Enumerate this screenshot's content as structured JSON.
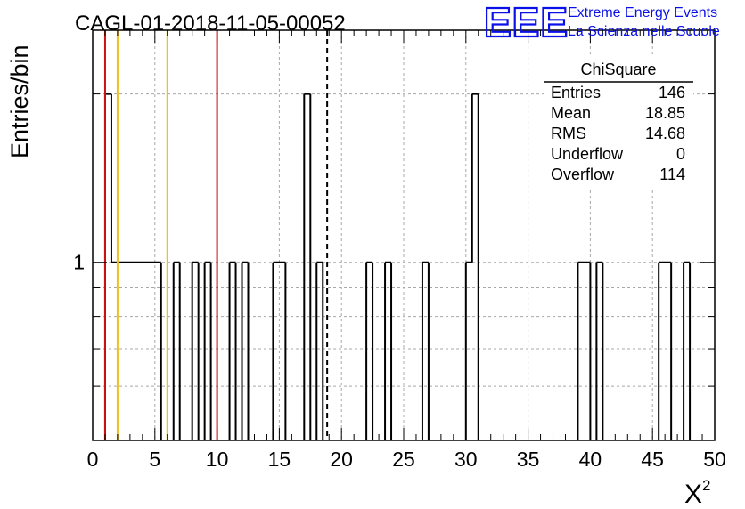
{
  "chart_data": {
    "type": "bar",
    "title": "CAGL-01-2018-11-05-00052",
    "xlabel": "X",
    "xlabel_superscript": "2",
    "ylabel": "Entries/bin",
    "xlim": [
      0,
      50
    ],
    "ylim": [
      0.48,
      2.6
    ],
    "yscale": "log",
    "bin_width": 0.5,
    "x_ticks": [
      "0",
      "5",
      "10",
      "15",
      "20",
      "25",
      "30",
      "35",
      "40",
      "45",
      "50"
    ],
    "y_ticks": [
      "1"
    ],
    "grid": true,
    "histogram_style": "outline",
    "bins": [
      {
        "x": 1.0,
        "y": 2
      },
      {
        "x": 1.5,
        "y": 1
      },
      {
        "x": 2.0,
        "y": 1
      },
      {
        "x": 2.5,
        "y": 1
      },
      {
        "x": 3.0,
        "y": 1
      },
      {
        "x": 3.5,
        "y": 1
      },
      {
        "x": 4.0,
        "y": 1
      },
      {
        "x": 4.5,
        "y": 1
      },
      {
        "x": 5.0,
        "y": 1
      },
      {
        "x": 6.5,
        "y": 1
      },
      {
        "x": 8.0,
        "y": 1
      },
      {
        "x": 9.0,
        "y": 1
      },
      {
        "x": 11.0,
        "y": 1
      },
      {
        "x": 12.0,
        "y": 1
      },
      {
        "x": 14.5,
        "y": 1
      },
      {
        "x": 15.0,
        "y": 1
      },
      {
        "x": 17.0,
        "y": 2
      },
      {
        "x": 18.0,
        "y": 1
      },
      {
        "x": 22.0,
        "y": 1
      },
      {
        "x": 23.5,
        "y": 1
      },
      {
        "x": 26.5,
        "y": 1
      },
      {
        "x": 30.0,
        "y": 1
      },
      {
        "x": 30.5,
        "y": 2
      },
      {
        "x": 39.0,
        "y": 1
      },
      {
        "x": 39.5,
        "y": 1
      },
      {
        "x": 40.5,
        "y": 1
      },
      {
        "x": 45.5,
        "y": 1
      },
      {
        "x": 46.0,
        "y": 1
      },
      {
        "x": 47.5,
        "y": 1
      }
    ],
    "reference_lines": [
      {
        "x": 1.0,
        "color": "#cc1111",
        "style": "solid"
      },
      {
        "x": 2.0,
        "color": "#f0c020",
        "style": "solid"
      },
      {
        "x": 6.0,
        "color": "#f0c020",
        "style": "solid"
      },
      {
        "x": 10.0,
        "color": "#cc1111",
        "style": "solid"
      },
      {
        "x": 18.85,
        "color": "#000000",
        "style": "dashed"
      }
    ],
    "stats_box": {
      "title": "ChiSquare",
      "placement": "top-right",
      "rows": [
        {
          "label": "Entries",
          "value": "146"
        },
        {
          "label": "Mean",
          "value": "18.85"
        },
        {
          "label": "RMS",
          "value": "14.68"
        },
        {
          "label": "Underflow",
          "value": "0"
        },
        {
          "label": "Overflow",
          "value": "114"
        }
      ]
    }
  },
  "logo": {
    "letters": "EEE",
    "line1": "Extreme Energy Events",
    "line2": "La Scienza nelle Scuole",
    "color": "#0a10e8"
  }
}
